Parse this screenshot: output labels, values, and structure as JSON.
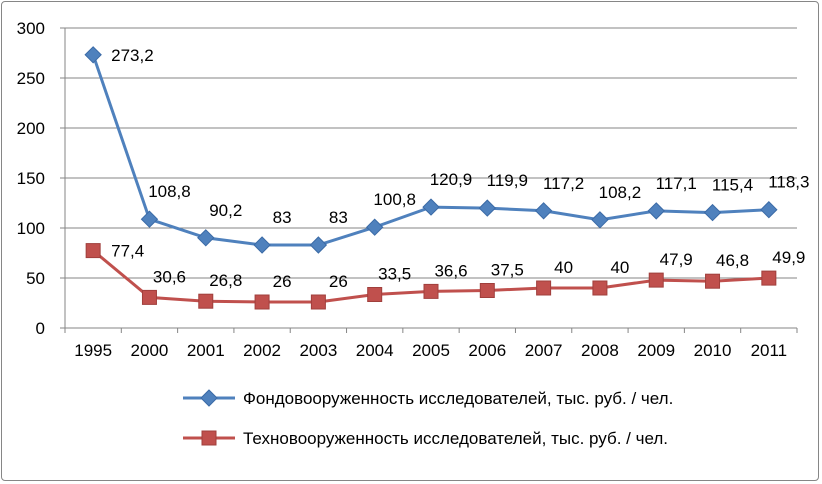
{
  "chart_data": {
    "type": "line",
    "categories": [
      "1995",
      "2000",
      "2001",
      "2002",
      "2003",
      "2004",
      "2005",
      "2006",
      "2007",
      "2008",
      "2009",
      "2010",
      "2011"
    ],
    "ylim": [
      0,
      300
    ],
    "yticks": [
      0,
      50,
      100,
      150,
      200,
      250,
      300
    ],
    "grid": true,
    "legend_position": "bottom",
    "series": [
      {
        "name": "Фондовооруженность исследователей, тыс. руб. / чел.",
        "color": "#4F81BD",
        "marker": "diamond",
        "values": [
          273.2,
          108.8,
          90.2,
          83,
          83,
          100.8,
          120.9,
          119.9,
          117.2,
          108.2,
          117.1,
          115.4,
          118.3
        ],
        "labels": [
          "273,2",
          "108,8",
          "90,2",
          "83",
          "83",
          "100,8",
          "120,9",
          "119,9",
          "117,2",
          "108,2",
          "117,1",
          "115,4",
          "118,3"
        ]
      },
      {
        "name": "Техновооруженность исследователей, тыс. руб. / чел.",
        "color": "#C0504D",
        "marker": "square",
        "values": [
          77.4,
          30.6,
          26.8,
          26,
          26,
          33.5,
          36.6,
          37.5,
          40,
          40,
          47.9,
          46.8,
          49.9
        ],
        "labels": [
          "77,4",
          "30,6",
          "26,8",
          "26",
          "26",
          "33,5",
          "36,6",
          "37,5",
          "40",
          "40",
          "47,9",
          "46,8",
          "49,9"
        ]
      }
    ]
  }
}
